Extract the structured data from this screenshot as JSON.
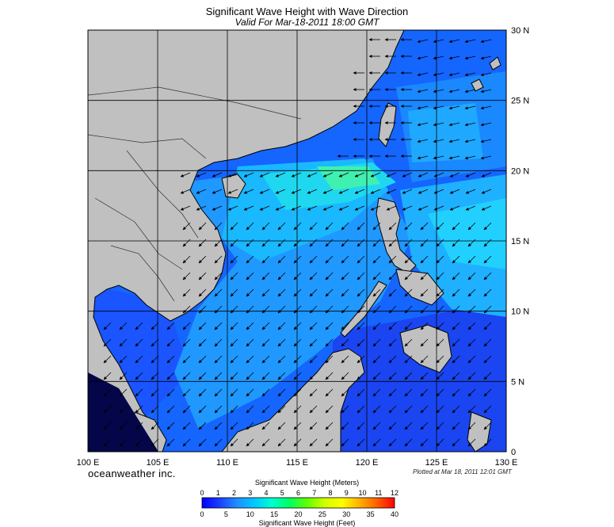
{
  "header": {
    "title": "Significant Wave Height with Wave Direction",
    "subtitle": "Valid For Mar-18-2011 18:00 GMT"
  },
  "map": {
    "lon_labels": [
      "100 E",
      "105 E",
      "110 E",
      "115 E",
      "120 E",
      "125 E",
      "130 E"
    ],
    "lat_labels": [
      "30 N",
      "25 N",
      "20 N",
      "15 N",
      "10 N",
      "5 N",
      "0"
    ],
    "extent": {
      "lon_min": 100,
      "lon_max": 130,
      "lat_min": 0,
      "lat_max": 30
    },
    "land_color": "#c0c0c0",
    "wave_direction": "from north-east to south-west"
  },
  "footer": {
    "brand": "oceanweather inc.",
    "plotted": "Plotted at Mar 18, 2011 12:01 GMT"
  },
  "colorbar": {
    "meters_title": "Significant Wave Height (Meters)",
    "feet_title": "Significant Wave Height (Feet)",
    "meters_ticks": [
      "0",
      "1",
      "2",
      "3",
      "4",
      "5",
      "6",
      "7",
      "8",
      "9",
      "10",
      "11",
      "12"
    ],
    "feet_ticks": [
      "0",
      "5",
      "10",
      "15",
      "20",
      "25",
      "30",
      "35",
      "40"
    ],
    "colors": [
      "#0000ff",
      "#1a40ff",
      "#1f8fff",
      "#00c8ff",
      "#00ffd0",
      "#00ff60",
      "#60ff00",
      "#d0ff00",
      "#ffff00",
      "#ffb000",
      "#ff6000",
      "#ff0000"
    ]
  }
}
